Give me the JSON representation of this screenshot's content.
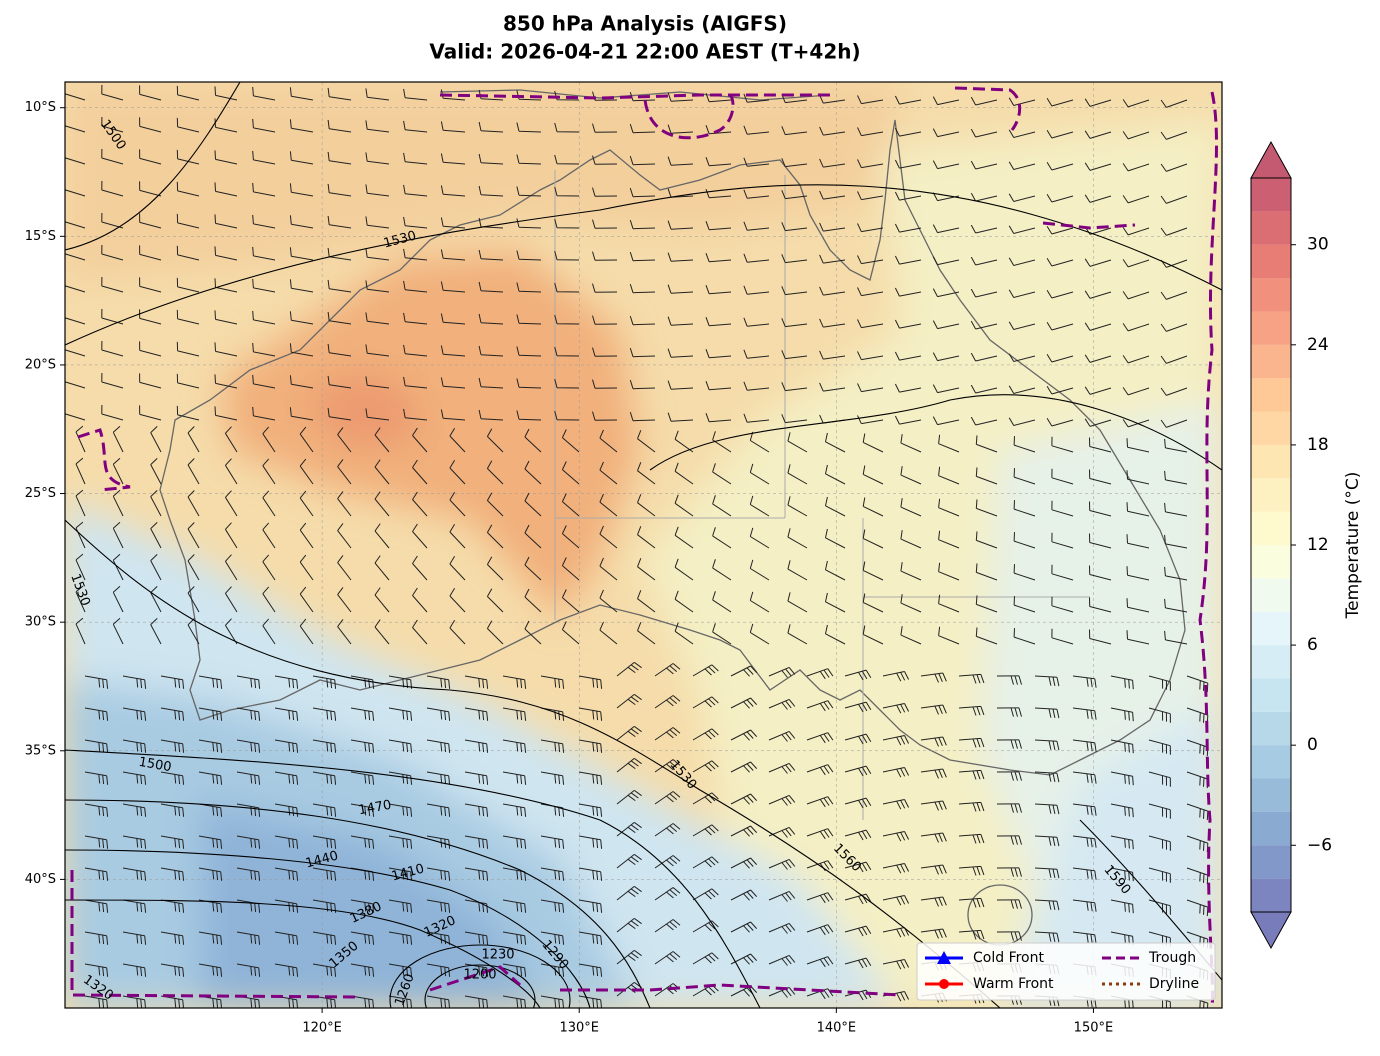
{
  "title": "850 hPa Analysis (AIGFS)",
  "subtitle": "Valid: 2026-04-21 22:00 AEST (T+42h)",
  "map": {
    "type": "map",
    "xlim": [
      110,
      155
    ],
    "ylim": [
      -45,
      -9
    ],
    "xticks": [
      {
        "value": 120,
        "label": "120°E"
      },
      {
        "value": 130,
        "label": "130°E"
      },
      {
        "value": 140,
        "label": "140°E"
      },
      {
        "value": 150,
        "label": "150°E"
      }
    ],
    "yticks": [
      {
        "value": -10,
        "label": "10°S"
      },
      {
        "value": -15,
        "label": "15°S"
      },
      {
        "value": -20,
        "label": "20°S"
      },
      {
        "value": -25,
        "label": "25°S"
      },
      {
        "value": -30,
        "label": "30°S"
      },
      {
        "value": -35,
        "label": "35°S"
      },
      {
        "value": -40,
        "label": "40°S"
      }
    ],
    "grid": true
  },
  "colorbar": {
    "label": "Temperature (°C)",
    "range": [
      -10,
      34
    ],
    "step": 2,
    "ticks": [
      {
        "value": 30,
        "label": "30"
      },
      {
        "value": 24,
        "label": "24"
      },
      {
        "value": 18,
        "label": "18"
      },
      {
        "value": 12,
        "label": "12"
      },
      {
        "value": 6,
        "label": "6"
      },
      {
        "value": 0,
        "label": "0"
      },
      {
        "value": -6,
        "label": "−6"
      }
    ]
  },
  "contour_labels": [
    1500,
    1530,
    1530,
    1500,
    1470,
    1440,
    1410,
    1380,
    1350,
    1320,
    1230,
    1290,
    1200,
    1260,
    1320,
    1530,
    1560,
    1590
  ],
  "legend": [
    "Cold Front",
    "Warm Front",
    "Trough",
    "Dryline"
  ]
}
